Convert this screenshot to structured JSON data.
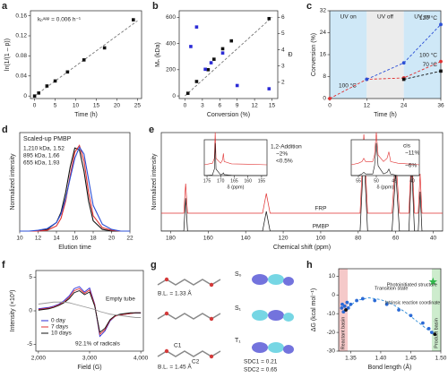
{
  "chart_data": [
    {
      "type": "scatter",
      "label": "a",
      "x_label": "Time (h)",
      "y_label": "ln(1/(1 – p))",
      "xlim": [
        -1,
        26
      ],
      "xticks": [
        0,
        5,
        10,
        15,
        20,
        25
      ],
      "ylim": [
        -0.005,
        0.17
      ],
      "yticks": [
        0,
        0.04,
        0.08,
        0.12,
        0.16
      ],
      "annotations": [
        "kₚᵃᵖᵖ = 0.006 h⁻¹"
      ],
      "series": [
        {
          "color": "#777777",
          "line": "dashed",
          "x": [
            0,
            25
          ],
          "values": [
            0,
            0.15
          ]
        },
        {
          "color": "#111111",
          "marker": "square",
          "x": [
            0,
            1,
            3,
            5,
            8,
            12,
            17,
            24
          ],
          "values": [
            0,
            0.006,
            0.02,
            0.03,
            0.048,
            0.072,
            0.096,
            0.152
          ]
        }
      ]
    },
    {
      "type": "scatter",
      "label": "b",
      "x_label": "Conversion (%)",
      "y_label": "Mₙ (kDa)",
      "y2_label": "Đ",
      "xlim": [
        -1,
        16
      ],
      "xticks": [
        0,
        3,
        6,
        9,
        12,
        15
      ],
      "ylim": [
        -20,
        650
      ],
      "yticks": [
        0,
        200,
        400,
        600
      ],
      "y2lim": [
        1,
        6.4
      ],
      "y2ticks": [
        2,
        3,
        4,
        5,
        6
      ],
      "series": [
        {
          "color": "#777777",
          "line": "dashed",
          "x": [
            0,
            15
          ],
          "values": [
            0,
            600
          ]
        },
        {
          "color": "#111111",
          "marker": "square",
          "x": [
            0.5,
            2,
            4,
            5,
            6.5,
            8,
            14.5
          ],
          "values": [
            20,
            110,
            200,
            280,
            360,
            420,
            590
          ]
        },
        {
          "color": "#2b2bd6",
          "marker": "square",
          "axis": "y2",
          "x": [
            1,
            2,
            3.5,
            4.5,
            6.5,
            9,
            14.5
          ],
          "values": [
            4.2,
            5.4,
            2.8,
            3.2,
            3.8,
            1.8,
            1.6
          ]
        }
      ]
    },
    {
      "type": "line",
      "label": "c",
      "x_label": "Time (h)",
      "y_label": "Conversion (%)",
      "xlim": [
        0,
        36
      ],
      "xticks": [
        0,
        12,
        24,
        36
      ],
      "ylim": [
        0,
        32
      ],
      "yticks": [
        0,
        8,
        16,
        24,
        32
      ],
      "regions": [
        {
          "label": "UV on",
          "start": 0,
          "end": 12,
          "color": "#cfe8f7"
        },
        {
          "label": "UV off",
          "start": 12,
          "end": 24,
          "color": "#ececec"
        },
        {
          "label": "UV on",
          "start": 24,
          "end": 36,
          "color": "#cfe8f7"
        }
      ],
      "annotations": [
        "100 °C"
      ],
      "x": [
        0,
        12,
        24,
        36
      ],
      "series": [
        {
          "name": "100 °C",
          "color": "#e03030",
          "line": "dashed",
          "marker": "circle",
          "values": [
            0,
            7,
            7.5,
            13.5
          ]
        },
        {
          "name": "120 °C",
          "color": "#2b4fd6",
          "line": "dashed",
          "marker": "circle",
          "values": [
            null,
            7,
            13,
            27
          ]
        },
        {
          "name": "70 °C",
          "color": "#111111",
          "line": "dashed",
          "marker": "square",
          "values": [
            null,
            null,
            7,
            10
          ]
        }
      ]
    },
    {
      "type": "line",
      "label": "d",
      "title": "Scaled-up PMBP",
      "x_label": "Elution time",
      "y_label": "Normalized intensity",
      "xlim": [
        10,
        22
      ],
      "xticks": [
        10,
        12,
        14,
        16,
        18,
        20,
        22
      ],
      "ylim": [
        0,
        1.15
      ],
      "x": [
        10,
        11,
        12,
        13,
        14,
        14.5,
        15,
        15.5,
        16,
        16.5,
        17,
        17.5,
        18,
        19,
        20,
        21,
        22
      ],
      "series": [
        {
          "name": "1,210 kDa, 1.52",
          "color": "#111111",
          "line": "solid",
          "values": [
            0,
            0,
            0,
            0.02,
            0.1,
            0.22,
            0.45,
            0.75,
            0.97,
            0.95,
            0.7,
            0.35,
            0.12,
            0.02,
            0,
            0,
            0
          ]
        },
        {
          "name": "895 kDa, 1.66",
          "color": "#e03030",
          "line": "solid",
          "values": [
            0,
            0,
            0,
            0.01,
            0.06,
            0.15,
            0.35,
            0.65,
            0.92,
            1.0,
            0.82,
            0.45,
            0.18,
            0.04,
            0.01,
            0,
            0
          ]
        },
        {
          "name": "655 kDa, 1.93",
          "color": "#2b4fd6",
          "line": "solid",
          "values": [
            0,
            0,
            0.01,
            0.03,
            0.1,
            0.2,
            0.38,
            0.62,
            0.85,
            0.98,
            0.9,
            0.6,
            0.3,
            0.08,
            0.02,
            0,
            0
          ]
        }
      ]
    },
    {
      "type": "line",
      "label": "e",
      "x_label": "Chemical shift (ppm)",
      "y_label": "Normalized intensity",
      "xlim": [
        185,
        35
      ],
      "xticks": [
        180,
        160,
        140,
        120,
        100,
        80,
        60,
        40
      ],
      "ylim": [
        0,
        1.5
      ],
      "x": [
        185,
        173,
        172,
        171,
        131,
        129,
        127,
        79,
        77,
        75,
        62,
        60,
        58,
        53,
        51.5,
        50,
        48,
        47,
        46,
        35
      ],
      "series": [
        {
          "name": "FRP",
          "color": "#e03030",
          "line": "solid",
          "values": [
            0,
            0,
            0.45,
            0,
            0,
            0.3,
            0,
            0,
            1.2,
            0,
            0,
            0.85,
            0,
            0,
            0.95,
            0,
            0,
            0.6,
            0,
            0
          ]
        },
        {
          "name": "PMBP",
          "color": "#111111",
          "line": "solid",
          "values": [
            0,
            0,
            0.5,
            0,
            0,
            0.3,
            0,
            0,
            1.2,
            0,
            0,
            0.9,
            0,
            0,
            1.0,
            0,
            0,
            0.6,
            0,
            0
          ]
        }
      ],
      "annotations": [
        "1,2-Addition",
        "~2%",
        "<0.5%",
        "cis",
        "~11%",
        "~6%"
      ],
      "insets": [
        {
          "x_label": "δ (ppm)",
          "xlim": [
            176,
            153
          ],
          "xticks": [
            175,
            170,
            165,
            160,
            155
          ],
          "ylim": [
            0,
            1.1
          ],
          "x": [
            176,
            173,
            172.3,
            172,
            171.7,
            170,
            169.3,
            169,
            168.7,
            166,
            160,
            153
          ],
          "series": [
            {
              "color": "#e03030",
              "line": "solid",
              "values": [
                0,
                0.05,
                0.2,
                1,
                0.2,
                0.05,
                0.15,
                0.35,
                0.1,
                0.03,
                0.02,
                0
              ]
            },
            {
              "color": "#111111",
              "line": "solid",
              "values": [
                0,
                0.02,
                0.2,
                1,
                0.2,
                0.02,
                0.05,
                0.08,
                0.03,
                0.01,
                0,
                0
              ]
            }
          ]
        },
        {
          "x_label": "δ (ppm)",
          "xlim": [
            57,
            38
          ],
          "xticks": [
            55,
            50,
            45,
            40
          ],
          "ylim": [
            0,
            1.1
          ],
          "x": [
            57,
            55,
            54,
            53.5,
            53,
            51,
            50.5,
            50,
            49.5,
            48,
            47,
            46.5,
            46,
            44,
            40,
            38
          ],
          "series": [
            {
              "color": "#e03030",
              "line": "solid",
              "values": [
                0,
                0.05,
                0.1,
                0.2,
                0.1,
                0.1,
                0.3,
                1,
                0.3,
                0.1,
                0.2,
                0.4,
                0.1,
                0.05,
                0.02,
                0
              ]
            },
            {
              "color": "#111111",
              "line": "solid",
              "values": [
                0,
                0,
                0.05,
                0.1,
                0.05,
                0.05,
                0.3,
                1,
                0.3,
                0.05,
                0.1,
                0.2,
                0.05,
                0,
                0,
                0
              ]
            }
          ]
        }
      ]
    },
    {
      "type": "line",
      "label": "f",
      "x_label": "Field (G)",
      "y_label": "Intensity (×10³)",
      "xlim": [
        1950,
        4050
      ],
      "xticks": [
        {
          "value": 2000,
          "label": "2,000"
        },
        {
          "value": 3000,
          "label": "3,000"
        },
        {
          "value": 4000,
          "label": "4,000"
        }
      ],
      "ylim": [
        -6,
        6
      ],
      "yticks": [
        -5,
        0,
        5
      ],
      "annotations": [
        "92.1% of radicals"
      ],
      "x": [
        2000,
        2100,
        2200,
        2300,
        2400,
        2500,
        2600,
        2700,
        2800,
        2900,
        3000,
        3100,
        3200,
        3300,
        3400,
        3500,
        3600,
        3700,
        3800,
        3900,
        4000
      ],
      "series": [
        {
          "name": "0 day",
          "color": "#2b2bd6",
          "line": "solid",
          "values": [
            0.3,
            0.4,
            0.5,
            0.7,
            1.0,
            1.5,
            2.2,
            3.3,
            3.6,
            2.8,
            3.4,
            1.0,
            -3.8,
            -3.0,
            -1.5,
            -0.8,
            -0.6,
            -0.5,
            -0.4,
            -0.3,
            -0.3
          ]
        },
        {
          "name": "7 days",
          "color": "#e03030",
          "line": "solid",
          "values": [
            0.2,
            0.3,
            0.4,
            0.6,
            0.9,
            1.3,
            2.0,
            3.0,
            3.3,
            2.6,
            3.1,
            0.9,
            -3.5,
            -2.8,
            -1.4,
            -0.8,
            -0.6,
            -0.5,
            -0.4,
            -0.3,
            -0.3
          ]
        },
        {
          "name": "10 days",
          "color": "#111111",
          "line": "solid",
          "values": [
            0.1,
            0.2,
            0.3,
            0.5,
            0.8,
            1.2,
            1.8,
            2.7,
            3.0,
            2.4,
            2.8,
            0.7,
            -3.2,
            -2.6,
            -1.3,
            -0.7,
            -0.5,
            -0.4,
            -0.3,
            -0.3,
            -0.3
          ]
        },
        {
          "name": "Empty tube",
          "color": "#999999",
          "line": "solid",
          "inline_label": true,
          "values": [
            1.0,
            1.1,
            1.2,
            1.3,
            1.3,
            1.3,
            1.2,
            1.0,
            0.8,
            0.6,
            0.4,
            0.2,
            -0.1,
            -0.3,
            -0.5,
            -0.6,
            -0.7,
            -0.8,
            -0.9,
            -1.0,
            -1.0
          ]
        }
      ]
    },
    {
      "type": "scatter",
      "label": "h",
      "x_label": "Bond length (Å)",
      "y_label": "ΔG (kcal mol⁻¹)",
      "xlim": [
        1.33,
        1.5
      ],
      "xticks": [
        1.35,
        {
          "value": 1.4,
          "label": "1.40"
        },
        1.45,
        {
          "value": 1.5,
          "label": "1.50"
        }
      ],
      "ylim": [
        -30,
        14
      ],
      "yticks": [
        -30,
        -20,
        -10,
        0,
        10
      ],
      "regions": [
        {
          "label": "Reactant basin",
          "start": 1.33,
          "end": 1.345,
          "color": "#f5c9c9"
        },
        {
          "label": "Product basin",
          "start": 1.485,
          "end": 1.5,
          "color": "#cdeccd"
        }
      ],
      "annotations": [
        "Transition state",
        "Intrinsic reaction coordinate",
        "Photoinitiated structure"
      ],
      "series": [
        {
          "color": "#2b8ad6",
          "line": "dashed",
          "x": [
            1.34,
            1.36,
            1.38,
            1.4,
            1.42,
            1.44,
            1.46,
            1.48,
            1.49
          ],
          "values": [
            -8,
            -3,
            -1.5,
            -2.5,
            -5,
            -9,
            -14,
            -19,
            -21
          ]
        },
        {
          "color": "#2b6ad6",
          "marker": "circle",
          "x": [
            1.335,
            1.336,
            1.338,
            1.34,
            1.342,
            1.344,
            1.346,
            1.35,
            1.36,
            1.37,
            1.39,
            1.41,
            1.43,
            1.45,
            1.47,
            1.48,
            1.485
          ],
          "values": [
            -7,
            -5,
            -9,
            -6,
            -8,
            -4,
            -7,
            -5,
            -3,
            -2,
            -3,
            -5,
            -8,
            -11,
            -15,
            -18,
            -20
          ]
        },
        {
          "color": "#111111",
          "marker": "circle",
          "x": [
            1.342,
            1.49
          ],
          "values": [
            -8,
            -21
          ]
        },
        {
          "color": "#2fb84a",
          "marker": "star",
          "x": [
            1.487
          ],
          "values": [
            7
          ]
        }
      ]
    }
  ],
  "diagram_g": {
    "label": "g",
    "states": [
      "S₀",
      "S₁",
      "T₁"
    ],
    "bond_labels": [
      "B.L. = 1.33 Å",
      "B.L. = 1.45 Å"
    ],
    "atoms": [
      "C1",
      "C2"
    ],
    "spin_density": [
      "SDC1 = 0.21",
      "SDC2 = 0.65"
    ]
  }
}
